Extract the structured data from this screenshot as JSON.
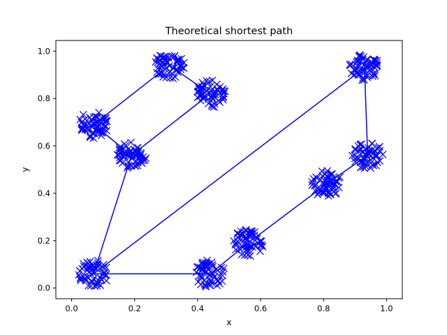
{
  "chart_data": {
    "type": "line",
    "title": "Theoretical shortest path",
    "xlabel": "x",
    "ylabel": "y",
    "xlim": [
      -0.05,
      1.05
    ],
    "ylim": [
      -0.045,
      1.045
    ],
    "x_ticks": [
      "0.0",
      "0.2",
      "0.4",
      "0.6",
      "0.8",
      "1.0"
    ],
    "y_ticks": [
      "0.0",
      "0.2",
      "0.4",
      "0.6",
      "0.8",
      "1.0"
    ],
    "x_tick_values": [
      0.0,
      0.2,
      0.4,
      0.6,
      0.8,
      1.0
    ],
    "y_tick_values": [
      0.0,
      0.2,
      0.4,
      0.6,
      0.8,
      1.0
    ],
    "grid": false,
    "legend": "none",
    "color": "#0000ff",
    "marker": "x",
    "series": [
      {
        "clusters": [
          {
            "x": 0.07,
            "y": 0.06
          },
          {
            "x": 0.44,
            "y": 0.06
          },
          {
            "x": 0.56,
            "y": 0.19
          },
          {
            "x": 0.81,
            "y": 0.44
          },
          {
            "x": 0.94,
            "y": 0.56
          },
          {
            "x": 0.93,
            "y": 0.93
          },
          {
            "x": 0.07,
            "y": 0.06
          },
          {
            "x": 0.19,
            "y": 0.56
          },
          {
            "x": 0.44,
            "y": 0.82
          },
          {
            "x": 0.31,
            "y": 0.94
          },
          {
            "x": 0.07,
            "y": 0.69
          },
          {
            "x": 0.19,
            "y": 0.56
          },
          {
            "x": 0.07,
            "y": 0.06
          }
        ]
      }
    ]
  }
}
